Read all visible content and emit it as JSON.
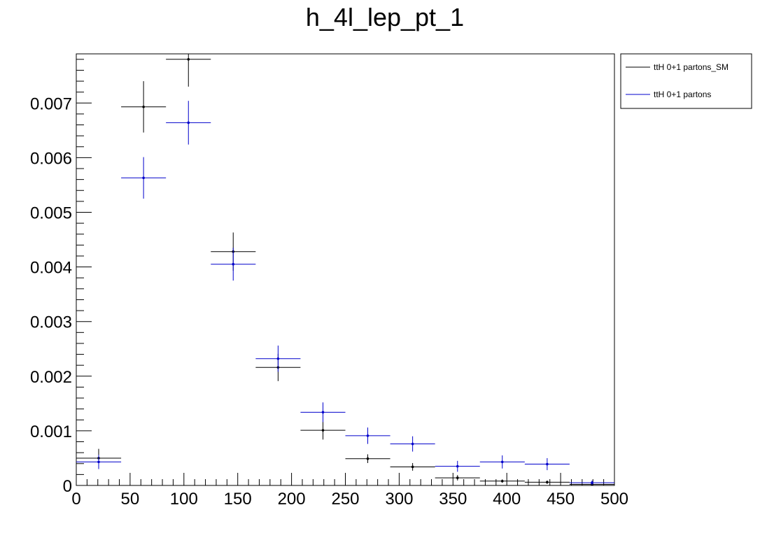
{
  "chart_data": {
    "type": "scatter",
    "title": "h_4l_lep_pt_1",
    "xlabel": "",
    "ylabel": "",
    "xlim": [
      0,
      500
    ],
    "ylim": [
      0,
      0.0079
    ],
    "grid": false,
    "legend_position": "outside-top-right",
    "x_ticks": [
      0,
      50,
      100,
      150,
      200,
      250,
      300,
      350,
      400,
      450,
      500
    ],
    "x_tick_labels": [
      "0",
      "50",
      "100",
      "150",
      "200",
      "250",
      "300",
      "350",
      "400",
      "450",
      "500"
    ],
    "y_ticks": [
      0,
      0.001,
      0.002,
      0.003,
      0.004,
      0.005,
      0.006,
      0.007
    ],
    "y_tick_labels": [
      "0",
      "0.001",
      "0.002",
      "0.003",
      "0.004",
      "0.005",
      "0.006",
      "0.007"
    ],
    "bin_edges": [
      0,
      41.67,
      83.33,
      125,
      166.67,
      208.33,
      250,
      291.67,
      333.33,
      375,
      416.67,
      458.33,
      500
    ],
    "series": [
      {
        "name": "ttH 0+1 partons_SM",
        "color": "#000000",
        "x": [
          20.8,
          62.5,
          104.2,
          145.8,
          187.5,
          229.2,
          270.8,
          312.5,
          354.2,
          395.8,
          437.5,
          479.2
        ],
        "y": [
          0.0005,
          0.00693,
          0.0078,
          0.00428,
          0.00216,
          0.00101,
          0.00049,
          0.00034,
          0.00014,
          8e-05,
          6e-05,
          2e-05
        ],
        "yerr": [
          0.00017,
          0.00047,
          0.0005,
          0.00035,
          0.00025,
          0.00017,
          8e-05,
          7e-05,
          5e-05,
          3e-05,
          3e-05,
          2e-05
        ]
      },
      {
        "name": "ttH 0+1 partons",
        "color": "#0000cc",
        "x": [
          20.8,
          62.5,
          104.2,
          145.8,
          187.5,
          229.2,
          270.8,
          312.5,
          354.2,
          395.8,
          437.5,
          479.2
        ],
        "y": [
          0.00043,
          0.00563,
          0.00664,
          0.00405,
          0.00232,
          0.00134,
          0.00091,
          0.00076,
          0.00035,
          0.00043,
          0.00039,
          5e-05
        ],
        "yerr": [
          0.00013,
          0.00038,
          0.0004,
          0.0003,
          0.00024,
          0.00018,
          0.00015,
          0.00014,
          0.0001,
          0.00012,
          0.00011,
          4e-05
        ]
      }
    ]
  }
}
